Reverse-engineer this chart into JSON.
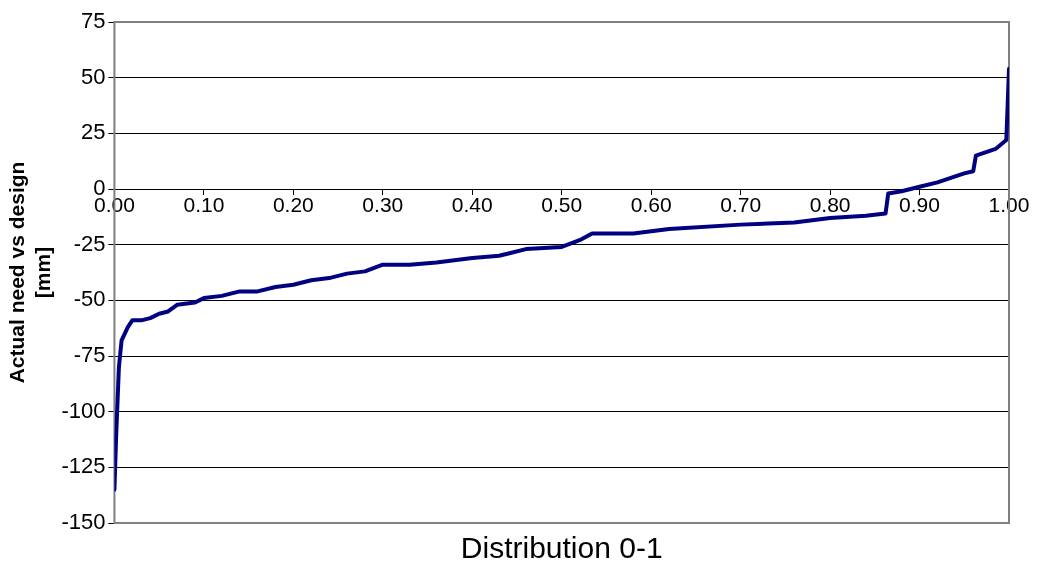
{
  "chart_data": {
    "type": "line",
    "xlabel": "Distribution 0-1",
    "ylabel": "Actual need vs design [mm]",
    "xlim": [
      0,
      1
    ],
    "ylim": [
      -150,
      75
    ],
    "xticks": [
      {
        "value": 0,
        "label": "0.00"
      },
      {
        "value": 0.1,
        "label": "0.10"
      },
      {
        "value": 0.2,
        "label": "0.20"
      },
      {
        "value": 0.3,
        "label": "0.30"
      },
      {
        "value": 0.4,
        "label": "0.40"
      },
      {
        "value": 0.5,
        "label": "0.50"
      },
      {
        "value": 0.6,
        "label": "0.60"
      },
      {
        "value": 0.7,
        "label": "0.70"
      },
      {
        "value": 0.8,
        "label": "0.80"
      },
      {
        "value": 0.9,
        "label": "0.90"
      },
      {
        "value": 1,
        "label": "1.00"
      }
    ],
    "yticks": [
      -150,
      -125,
      -100,
      -75,
      -50,
      -25,
      0,
      25,
      50,
      75
    ],
    "grid": "y",
    "legend": false,
    "marker": "none",
    "line_style": "solid",
    "series": [
      {
        "color": "#000080",
        "x": [
          0,
          0.002,
          0.005,
          0.008,
          0.015,
          0.02,
          0.03,
          0.04,
          0.05,
          0.06,
          0.07,
          0.09,
          0.1,
          0.12,
          0.14,
          0.16,
          0.18,
          0.2,
          0.22,
          0.24,
          0.26,
          0.28,
          0.3,
          0.33,
          0.36,
          0.4,
          0.43,
          0.46,
          0.5,
          0.52,
          0.534,
          0.58,
          0.62,
          0.7,
          0.76,
          0.8,
          0.84,
          0.862,
          0.865,
          0.88,
          0.9,
          0.92,
          0.95,
          0.96,
          0.963,
          0.985,
          0.997,
          1
        ],
        "values": [
          -135,
          -110,
          -80,
          -68,
          -62,
          -59,
          -59,
          -58,
          -56,
          -55,
          -52,
          -51,
          -49,
          -48,
          -46,
          -46,
          -44,
          -43,
          -41,
          -40,
          -38,
          -37,
          -34,
          -34,
          -33,
          -31,
          -30,
          -27,
          -26,
          -23,
          -20,
          -20,
          -18,
          -16,
          -15,
          -13,
          -12,
          -11,
          -2,
          -1,
          1,
          3,
          7,
          8,
          15,
          18,
          22,
          54
        ]
      }
    ]
  }
}
